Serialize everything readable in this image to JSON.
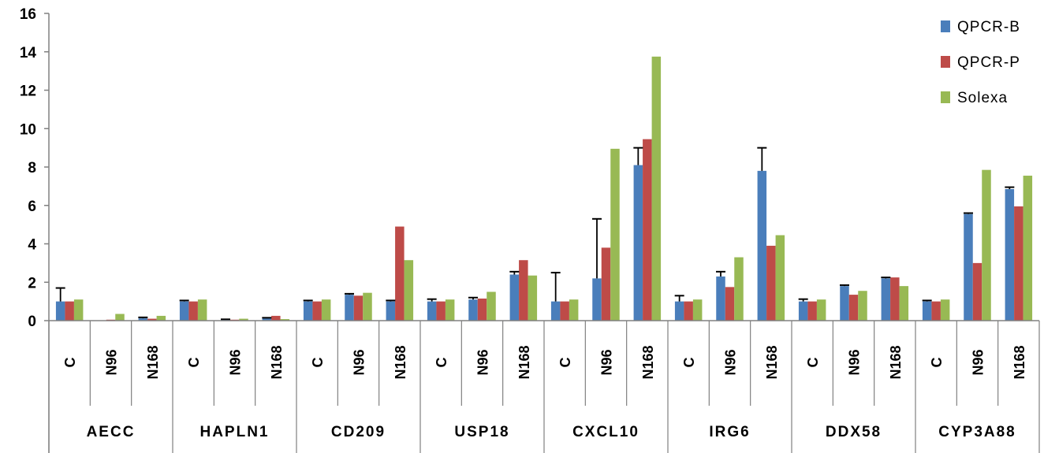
{
  "chart_data": {
    "type": "bar",
    "title": "",
    "xlabel": "",
    "ylabel": "",
    "ylim": [
      0,
      16
    ],
    "yticks": [
      0,
      2,
      4,
      6,
      8,
      10,
      12,
      14,
      16
    ],
    "grid": false,
    "legend_position": "top-right",
    "groups": [
      "AECC",
      "HAPLN1",
      "CD209",
      "USP18",
      "CXCL10",
      "IRG6",
      "DDX58",
      "CYP3A88"
    ],
    "conditions": [
      "C",
      "N96",
      "N168"
    ],
    "categories": [
      "AECC C",
      "AECC N96",
      "AECC N168",
      "HAPLN1 C",
      "HAPLN1 N96",
      "HAPLN1 N168",
      "CD209 C",
      "CD209 N96",
      "CD209 N168",
      "USP18 C",
      "USP18 N96",
      "USP18 N168",
      "CXCL10 C",
      "CXCL10 N96",
      "CXCL10 N168",
      "IRG6 C",
      "IRG6 N96",
      "IRG6 N168",
      "DDX58 C",
      "DDX58 N96",
      "DDX58 N168",
      "CYP3A88 C",
      "CYP3A88 N96",
      "CYP3A88 N168"
    ],
    "series": [
      {
        "name": "QPCR-B",
        "color": "#4a7ebb",
        "values": [
          1.0,
          0.02,
          0.12,
          1.0,
          0.05,
          0.12,
          1.0,
          1.35,
          1.0,
          1.0,
          1.1,
          2.4,
          1.0,
          2.2,
          8.1,
          1.0,
          2.3,
          7.8,
          1.0,
          1.8,
          2.2,
          1.0,
          5.55,
          6.85
        ],
        "errors": [
          0.7,
          0.0,
          0.05,
          0.05,
          0.02,
          0.03,
          0.05,
          0.05,
          0.05,
          0.12,
          0.1,
          0.15,
          1.5,
          3.1,
          0.9,
          0.3,
          0.25,
          1.2,
          0.12,
          0.05,
          0.05,
          0.05,
          0.05,
          0.1
        ]
      },
      {
        "name": "QPCR-P",
        "color": "#be4b48",
        "values": [
          1.0,
          0.05,
          0.1,
          1.0,
          0.05,
          0.25,
          1.0,
          1.3,
          4.9,
          1.0,
          1.15,
          3.15,
          1.0,
          3.8,
          9.45,
          1.0,
          1.75,
          3.9,
          1.0,
          1.35,
          2.25,
          1.0,
          3.0,
          5.95
        ]
      },
      {
        "name": "Solexa",
        "color": "#98b954",
        "values": [
          1.1,
          0.35,
          0.25,
          1.1,
          0.1,
          0.08,
          1.1,
          1.45,
          3.15,
          1.1,
          1.5,
          2.35,
          1.1,
          8.95,
          13.75,
          1.1,
          3.3,
          4.45,
          1.1,
          1.55,
          1.8,
          1.1,
          7.85,
          7.55
        ]
      }
    ]
  }
}
